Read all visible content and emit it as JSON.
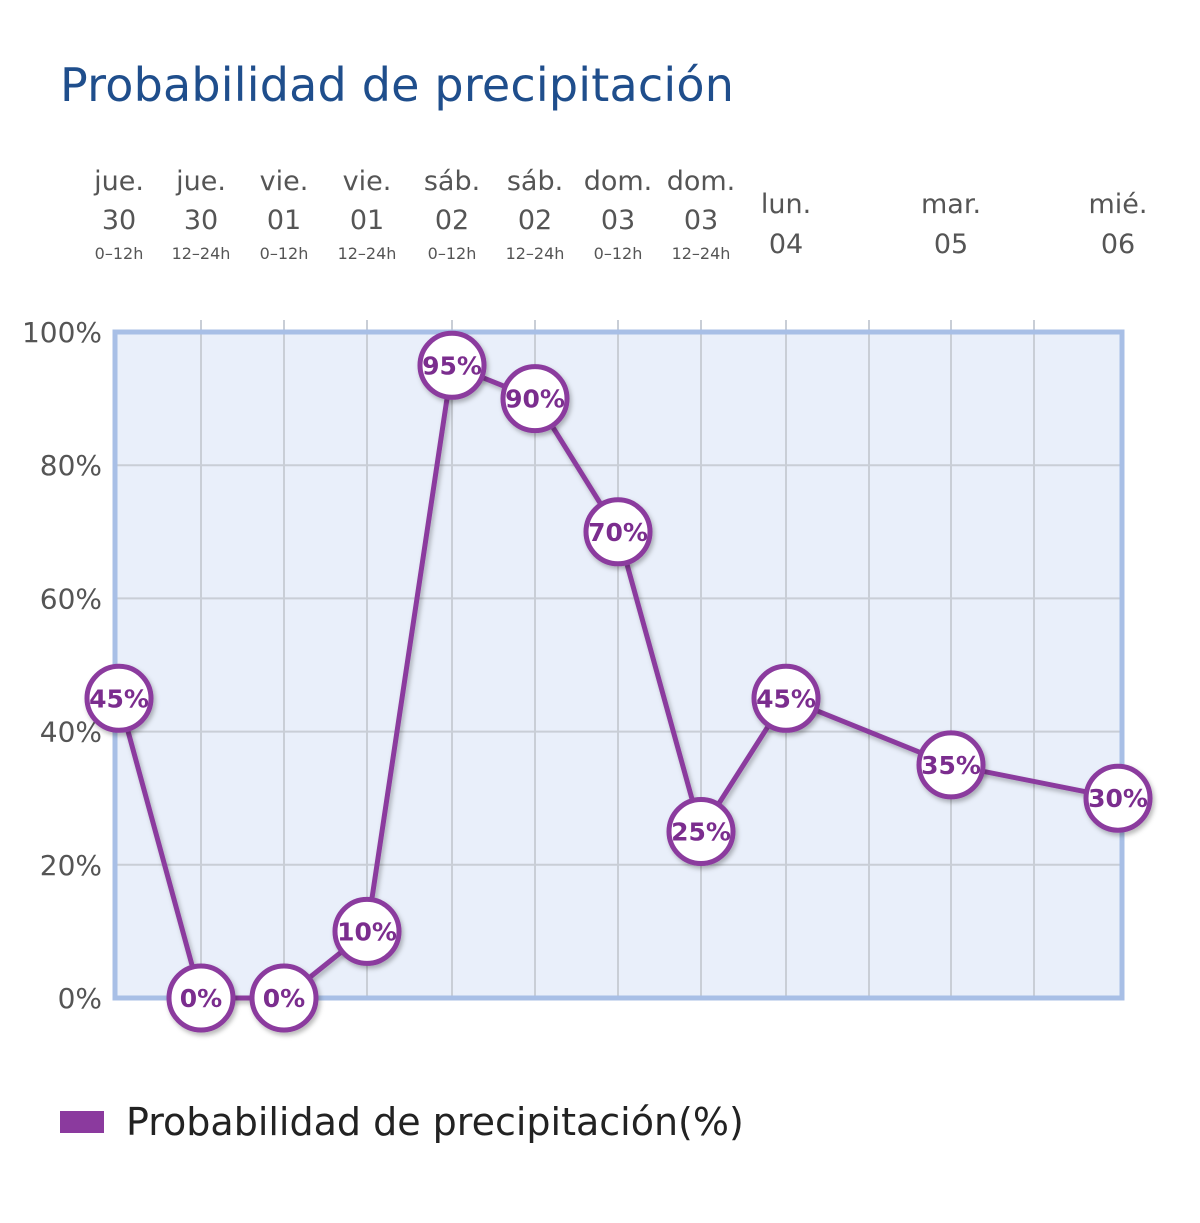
{
  "title": "Probabilidad de precipitación",
  "colors": {
    "title": "#1f4e8c",
    "line": "#8b3a9e",
    "plot_background": "#e9effa",
    "plot_border": "#a8bfe6",
    "grid": "#c9ced6"
  },
  "chart_data": {
    "type": "line",
    "categories": [
      {
        "day": "jue.",
        "num": "30",
        "period": "0–12h"
      },
      {
        "day": "jue.",
        "num": "30",
        "period": "12–24h"
      },
      {
        "day": "vie.",
        "num": "01",
        "period": "0–12h"
      },
      {
        "day": "vie.",
        "num": "01",
        "period": "12–24h"
      },
      {
        "day": "sáb.",
        "num": "02",
        "period": "0–12h"
      },
      {
        "day": "sáb.",
        "num": "02",
        "period": "12–24h"
      },
      {
        "day": "dom.",
        "num": "03",
        "period": "0–12h"
      },
      {
        "day": "dom.",
        "num": "03",
        "period": "12–24h"
      },
      {
        "day": "lun.",
        "num": "04",
        "period": ""
      },
      {
        "day": "mar.",
        "num": "05",
        "period": ""
      },
      {
        "day": "mié.",
        "num": "06",
        "period": ""
      }
    ],
    "series": [
      {
        "name": "Probabilidad de precipitación(%)",
        "values": [
          45,
          0,
          0,
          10,
          95,
          90,
          70,
          25,
          45,
          35,
          30
        ],
        "labels": [
          "45%",
          "0%",
          "0%",
          "10%",
          "95%",
          "90%",
          "70%",
          "25%",
          "45%",
          "35%",
          "30%"
        ]
      }
    ],
    "ylim": [
      0,
      100
    ],
    "yticks": [
      "0%",
      "20%",
      "40%",
      "60%",
      "80%",
      "100%"
    ],
    "grid": true,
    "legend": "bottom-left"
  }
}
